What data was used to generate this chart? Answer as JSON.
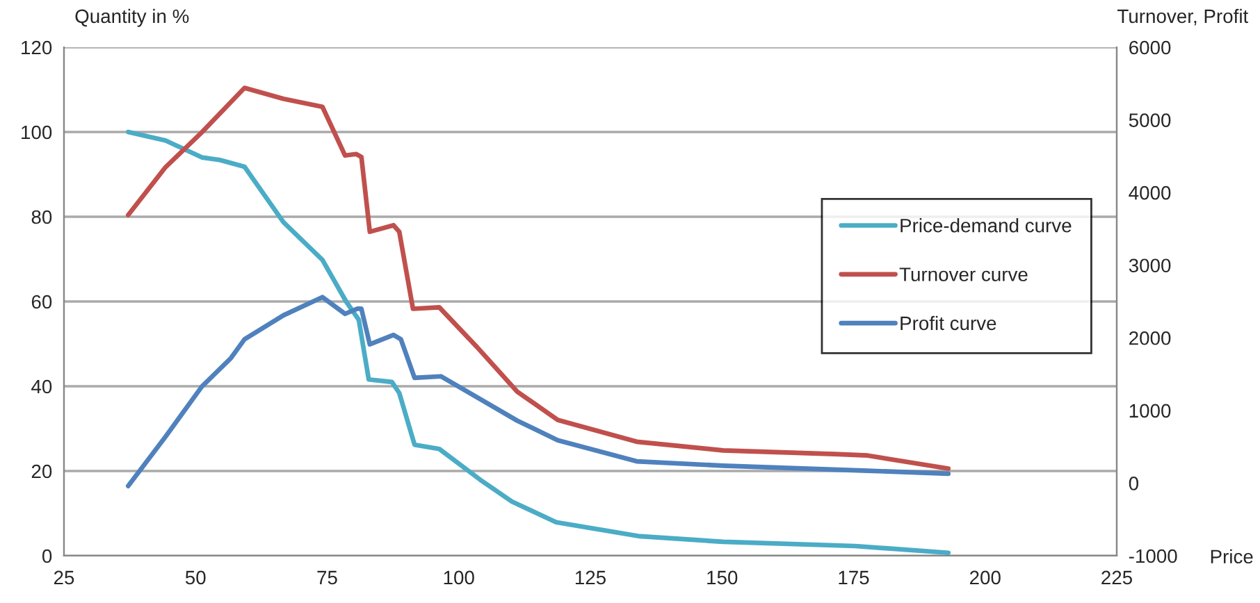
{
  "chart_data": {
    "type": "line",
    "xlabel": "Price",
    "ylabel": "Quantity in %",
    "y2label": "Turnover, Profit",
    "xlim": [
      25,
      225
    ],
    "xticks": [
      25,
      50,
      75,
      100,
      125,
      150,
      175,
      200,
      225
    ],
    "ylim": [
      0,
      120
    ],
    "yticks": [
      0,
      20,
      40,
      60,
      80,
      100,
      120
    ],
    "y2lim": [
      -1000,
      6000
    ],
    "y2ticks": [
      -1000,
      0,
      1000,
      2000,
      3000,
      4000,
      5000,
      6000
    ],
    "grid": "y",
    "legend": "right",
    "marker": "none",
    "line_style": "solid",
    "series": [
      {
        "name": "Price-demand curve",
        "color": "#4bacc6",
        "x": [
          37.2,
          44.3,
          51.2,
          54.6,
          59.3,
          66.7,
          74.1,
          78.6,
          81,
          82.9,
          87.3,
          88.7,
          91.6,
          96.3,
          104,
          110.1,
          118.5,
          134.4,
          150.2,
          175.3,
          193
        ],
        "values": [
          100,
          98,
          94,
          93.4,
          91.8,
          78.7,
          69.8,
          60,
          55.7,
          41.6,
          41,
          38.4,
          26.2,
          25.2,
          18,
          12.8,
          7.9,
          4.6,
          3.3,
          2.3,
          0.7
        ]
      },
      {
        "name": "Turnover curve",
        "color": "#c0504d",
        "axis": "y2",
        "x": [
          37.2,
          44.3,
          51.2,
          59.3,
          66.7,
          74.1,
          78.4,
          80.5,
          81.5,
          83.1,
          87.6,
          88.7,
          91.3,
          96.3,
          103.5,
          111.1,
          118.8,
          133.8,
          150.2,
          171.4,
          177.7,
          193
        ],
        "values": [
          3690,
          4350,
          4830,
          5440,
          5290,
          5180,
          4510,
          4530,
          4490,
          3460,
          3550,
          3460,
          2400,
          2420,
          1870,
          1260,
          870,
          570,
          450,
          400,
          380,
          200
        ]
      },
      {
        "name": "Profit curve",
        "color": "#4f81bd",
        "axis": "y2",
        "x": [
          37.2,
          44.3,
          51.2,
          56.7,
          59.3,
          66.7,
          74.1,
          78.4,
          80.7,
          81.5,
          83.1,
          87.6,
          89,
          91.6,
          96.6,
          111.1,
          118.8,
          133.8,
          150.2,
          177.7,
          193
        ],
        "values": [
          -40,
          640,
          1330,
          1720,
          1980,
          2310,
          2560,
          2330,
          2400,
          2400,
          1910,
          2040,
          1980,
          1450,
          1470,
          860,
          590,
          300,
          240,
          170,
          130
        ]
      }
    ]
  }
}
